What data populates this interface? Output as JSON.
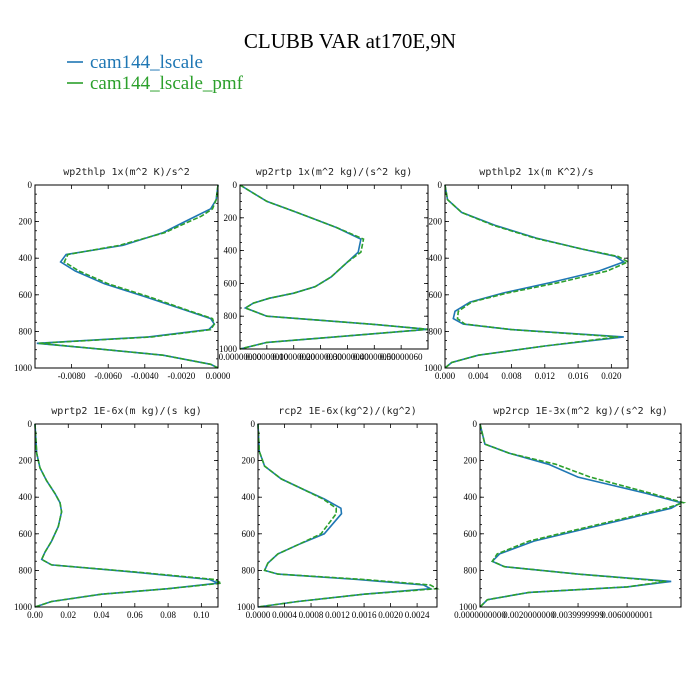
{
  "title": "CLUBB VAR at170E,9N",
  "legend": [
    {
      "label": "cam144_lscale",
      "color": "#1f77b4"
    },
    {
      "label": "cam144_lscale_pmf",
      "color": "#2ca02c"
    }
  ],
  "colors": {
    "series1": "#1f77b4",
    "series2": "#2ca02c"
  },
  "chart_data": [
    {
      "type": "line",
      "title": "wp2thlp  1x(m^2 K)/s^2",
      "xlim": [
        -0.01,
        0.0
      ],
      "ylim": [
        0,
        1000
      ],
      "y_inverted": true,
      "xticks": [
        -0.008,
        -0.006,
        -0.004,
        -0.002,
        0.0
      ],
      "xtick_labels": [
        "-0.0080",
        "-0.0060",
        "-0.0040",
        "-0.0020",
        "0.0000"
      ],
      "yticks": [
        0,
        200,
        400,
        600,
        800,
        1000
      ],
      "ytick_labels": [
        "0",
        "200",
        "400",
        "600",
        "800",
        "1000"
      ],
      "series": [
        {
          "name": "cam144_lscale",
          "x": [
            0.0,
            -0.0001,
            -0.0004,
            -0.0012,
            -0.002,
            -0.003,
            -0.0052,
            -0.0083,
            -0.0086,
            -0.0078,
            -0.0062,
            -0.004,
            -0.0016,
            -0.0004,
            -0.0002,
            -0.0005,
            -0.0038,
            -0.0099,
            -0.0066,
            -0.003,
            -0.0004,
            0.0
          ],
          "y": [
            0,
            80,
            130,
            170,
            210,
            260,
            330,
            380,
            420,
            470,
            540,
            610,
            690,
            730,
            760,
            790,
            830,
            865,
            895,
            930,
            980,
            1000
          ]
        },
        {
          "name": "cam144_lscale_pmf",
          "x": [
            0.0,
            -0.0001,
            -0.0003,
            -0.0009,
            -0.0018,
            -0.0029,
            -0.0054,
            -0.0082,
            -0.0084,
            -0.0076,
            -0.006,
            -0.0038,
            -0.0015,
            -0.0003,
            -0.0002,
            -0.0004,
            -0.0036,
            -0.0098,
            -0.0066,
            -0.003,
            -0.0004,
            0.0
          ],
          "y": [
            0,
            80,
            130,
            170,
            210,
            260,
            330,
            380,
            420,
            470,
            540,
            610,
            690,
            730,
            760,
            790,
            830,
            865,
            895,
            930,
            980,
            1000
          ]
        }
      ]
    },
    {
      "type": "line",
      "title": "wp2rtp  1x(m^2 kg)/(s^2 kg)",
      "xlim": [
        0.0,
        7e-07
      ],
      "ylim": [
        0,
        1000
      ],
      "y_inverted": true,
      "xtick_labels": [
        "0.00000000",
        "0.00000010",
        "0.00000020",
        "0.00000030",
        "0.00000040",
        "0.00000050",
        "0.00000060"
      ],
      "xticks": [
        0.0,
        1e-07,
        2e-07,
        3e-07,
        4e-07,
        5e-07,
        6e-07
      ],
      "yticks": [
        0,
        200,
        400,
        600,
        800,
        1000
      ],
      "ytick_labels": [
        "0",
        "200",
        "400",
        "600",
        "800",
        "1000"
      ],
      "series": [
        {
          "name": "cam144_lscale",
          "x": [
            0.0,
            1e-07,
            2e-07,
            2.8e-07,
            3.6e-07,
            4.5e-07,
            4.4e-07,
            4e-07,
            3.4e-07,
            2.8e-07,
            2e-07,
            1.1e-07,
            5e-08,
            2e-08,
            1e-07,
            5e-07,
            7e-07,
            4e-07,
            1e-07,
            0.0
          ],
          "y": [
            0,
            100,
            160,
            210,
            260,
            330,
            410,
            470,
            560,
            620,
            660,
            690,
            720,
            750,
            800,
            850,
            880,
            920,
            960,
            1000
          ]
        },
        {
          "name": "cam144_lscale_pmf",
          "x": [
            0.0,
            1e-07,
            2e-07,
            2.8e-07,
            3.6e-07,
            4.6e-07,
            4.5e-07,
            4e-07,
            3.4e-07,
            2.8e-07,
            2e-07,
            1.1e-07,
            5e-08,
            2e-08,
            1e-07,
            5e-07,
            7e-07,
            4e-07,
            1e-07,
            0.0
          ],
          "y": [
            0,
            100,
            160,
            210,
            260,
            330,
            410,
            470,
            560,
            620,
            660,
            690,
            720,
            750,
            800,
            850,
            880,
            920,
            960,
            1000
          ]
        }
      ]
    },
    {
      "type": "line",
      "title": "wpthlp2  1x(m K^2)/s",
      "xlim": [
        0.0,
        0.022
      ],
      "ylim": [
        0,
        1000
      ],
      "y_inverted": true,
      "xticks": [
        0.0,
        0.004,
        0.008,
        0.012,
        0.016,
        0.02
      ],
      "xtick_labels": [
        "0.000",
        "0.004",
        "0.008",
        "0.012",
        "0.016",
        "0.020"
      ],
      "yticks": [
        0,
        200,
        400,
        600,
        800,
        1000
      ],
      "ytick_labels": [
        "0",
        "200",
        "400",
        "600",
        "800",
        "1000"
      ],
      "series": [
        {
          "name": "cam144_lscale",
          "x": [
            0.0,
            0.0003,
            0.002,
            0.006,
            0.011,
            0.0165,
            0.0205,
            0.0215,
            0.0185,
            0.013,
            0.007,
            0.003,
            0.0012,
            0.001,
            0.0022,
            0.008,
            0.0215,
            0.012,
            0.004,
            0.0008,
            0.0
          ],
          "y": [
            0,
            80,
            150,
            220,
            290,
            350,
            390,
            420,
            470,
            530,
            590,
            640,
            690,
            730,
            760,
            790,
            830,
            880,
            930,
            970,
            1000
          ]
        },
        {
          "name": "cam144_lscale_pmf",
          "x": [
            0.0,
            0.0003,
            0.002,
            0.0058,
            0.0108,
            0.0165,
            0.0208,
            0.022,
            0.0195,
            0.014,
            0.0075,
            0.0032,
            0.0016,
            0.0015,
            0.0024,
            0.008,
            0.0208,
            0.012,
            0.004,
            0.0008,
            0.0
          ],
          "y": [
            0,
            80,
            150,
            220,
            290,
            350,
            390,
            420,
            470,
            530,
            590,
            640,
            690,
            730,
            760,
            790,
            830,
            880,
            930,
            970,
            1000
          ]
        }
      ]
    },
    {
      "type": "line",
      "title": "wprtp2  1E-6x(m kg)/(s kg)",
      "xlim": [
        0.0,
        0.11
      ],
      "ylim": [
        0,
        1000
      ],
      "y_inverted": true,
      "xticks": [
        0.0,
        0.02,
        0.04,
        0.06,
        0.08,
        0.1
      ],
      "xtick_labels": [
        "0.00",
        "0.02",
        "0.04",
        "0.06",
        "0.08",
        "0.10"
      ],
      "yticks": [
        0,
        200,
        400,
        600,
        800,
        1000
      ],
      "ytick_labels": [
        "0",
        "200",
        "400",
        "600",
        "800",
        "1000"
      ],
      "series": [
        {
          "name": "cam144_lscale",
          "x": [
            0.0,
            0.001,
            0.003,
            0.007,
            0.012,
            0.015,
            0.016,
            0.014,
            0.01,
            0.006,
            0.004,
            0.01,
            0.06,
            0.105,
            0.11,
            0.08,
            0.04,
            0.01,
            0.0
          ],
          "y": [
            0,
            160,
            240,
            310,
            380,
            430,
            480,
            560,
            640,
            700,
            740,
            770,
            810,
            850,
            870,
            900,
            930,
            970,
            1000
          ]
        },
        {
          "name": "cam144_lscale_pmf",
          "x": [
            0.0,
            0.001,
            0.003,
            0.007,
            0.012,
            0.015,
            0.016,
            0.014,
            0.01,
            0.006,
            0.004,
            0.01,
            0.062,
            0.108,
            0.112,
            0.08,
            0.04,
            0.01,
            0.0
          ],
          "y": [
            0,
            160,
            240,
            310,
            380,
            430,
            480,
            560,
            640,
            700,
            740,
            770,
            810,
            850,
            870,
            900,
            930,
            970,
            1000
          ]
        }
      ]
    },
    {
      "type": "line",
      "title": "rcp2  1E-6x(kg^2)/(kg^2)",
      "xlim": [
        0.0,
        0.0027
      ],
      "ylim": [
        0,
        1000
      ],
      "y_inverted": true,
      "xticks": [
        0.0,
        0.0004,
        0.0008,
        0.0012,
        0.0016,
        0.002,
        0.0024
      ],
      "xtick_labels": [
        "0.0000",
        "0.0004",
        "0.0008",
        "0.0012",
        "0.0016",
        "0.0020",
        "0.0024"
      ],
      "yticks": [
        0,
        200,
        400,
        600,
        800,
        1000
      ],
      "ytick_labels": [
        "0",
        "200",
        "400",
        "600",
        "800",
        "1000"
      ],
      "series": [
        {
          "name": "cam144_lscale",
          "x": [
            0.0,
            2e-05,
            0.0001,
            0.00035,
            0.0007,
            0.001,
            0.00125,
            0.00126,
            0.001,
            0.0006,
            0.0003,
            0.00015,
            0.0001,
            0.0003,
            0.0015,
            0.0025,
            0.0026,
            0.0016,
            0.0006,
            0.0
          ],
          "y": [
            0,
            150,
            230,
            300,
            360,
            410,
            460,
            490,
            600,
            660,
            710,
            760,
            800,
            820,
            850,
            880,
            900,
            930,
            970,
            1000
          ]
        },
        {
          "name": "cam144_lscale_pmf",
          "x": [
            0.0,
            2e-05,
            0.0001,
            0.00035,
            0.0007,
            0.00098,
            0.00118,
            0.00118,
            0.00095,
            0.0006,
            0.0003,
            0.00015,
            0.0001,
            0.0003,
            0.0016,
            0.0026,
            0.0027,
            0.0016,
            0.0006,
            0.0
          ],
          "y": [
            0,
            150,
            230,
            300,
            360,
            410,
            460,
            490,
            600,
            660,
            710,
            760,
            800,
            820,
            850,
            880,
            900,
            930,
            970,
            1000
          ]
        }
      ]
    },
    {
      "type": "line",
      "title": "wp2rcp  1E-3x(m^2 kg)/(s^2 kg)",
      "xlim": [
        0.0,
        0.0082
      ],
      "ylim": [
        0,
        1000
      ],
      "y_inverted": true,
      "xticks": [
        0.0,
        0.002,
        0.004,
        0.006
      ],
      "xtick_labels": [
        "0.0000000000",
        "0.0020000000",
        "0.0039999999",
        "0.0060000001"
      ],
      "yticks": [
        0,
        200,
        400,
        600,
        800,
        1000
      ],
      "ytick_labels": [
        "0",
        "200",
        "400",
        "600",
        "800",
        "1000"
      ],
      "series": [
        {
          "name": "cam144_lscale",
          "x": [
            0.0,
            0.0002,
            0.0012,
            0.0028,
            0.004,
            0.0068,
            0.0082,
            0.0078,
            0.005,
            0.0022,
            0.0008,
            0.0005,
            0.001,
            0.004,
            0.0078,
            0.006,
            0.002,
            0.0003,
            0.0
          ],
          "y": [
            0,
            110,
            160,
            220,
            290,
            380,
            430,
            460,
            550,
            640,
            710,
            750,
            780,
            820,
            860,
            890,
            920,
            960,
            1000
          ]
        },
        {
          "name": "cam144_lscale_pmf",
          "x": [
            0.0,
            0.0002,
            0.0012,
            0.0031,
            0.0045,
            0.007,
            0.0083,
            0.0076,
            0.0048,
            0.002,
            0.0007,
            0.0005,
            0.001,
            0.004,
            0.0076,
            0.006,
            0.002,
            0.0003,
            0.0
          ],
          "y": [
            0,
            110,
            160,
            220,
            290,
            380,
            430,
            460,
            550,
            640,
            710,
            750,
            780,
            820,
            860,
            890,
            920,
            960,
            1000
          ]
        }
      ]
    }
  ]
}
